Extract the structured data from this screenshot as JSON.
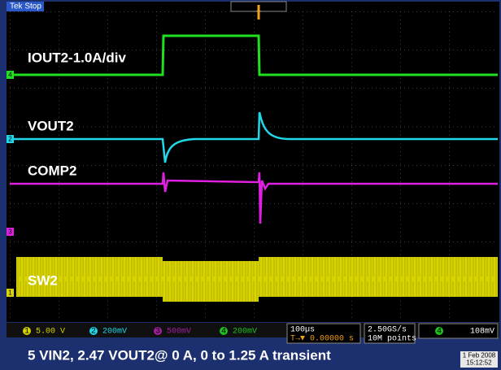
{
  "header": {
    "status": "Tek Stop",
    "trigger_marker": "T"
  },
  "traces": [
    {
      "label": "IOUT2-1.0A/div",
      "marker": "4"
    },
    {
      "label": "VOUT2",
      "marker": "2"
    },
    {
      "label": "COMP2",
      "marker": "3"
    },
    {
      "label": "SW2",
      "marker": "1"
    }
  ],
  "status_bar": {
    "channels": [
      {
        "number": "1",
        "scale": "5.00 V"
      },
      {
        "number": "2",
        "scale": "200mV"
      },
      {
        "number": "3",
        "scale": "500mV"
      },
      {
        "number": "4",
        "scale": "200mV"
      }
    ],
    "timebase": "100µs",
    "position": "T→▼ 0.00000 s",
    "sample_rate": "2.50GS/s",
    "record": "10M points",
    "trigger_channel": "4",
    "trigger_level": "108mV"
  },
  "caption": "5 VIN2, 2.47 VOUT2@ 0 A, 0 to 1.25 A transient",
  "date": "1 Feb 2008",
  "time": "15:12:52"
}
